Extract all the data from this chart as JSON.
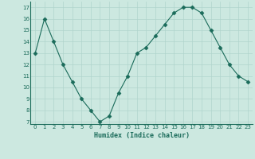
{
  "x": [
    0,
    1,
    2,
    3,
    4,
    5,
    6,
    7,
    8,
    9,
    10,
    11,
    12,
    13,
    14,
    15,
    16,
    17,
    18,
    19,
    20,
    21,
    22,
    23
  ],
  "y": [
    13,
    16,
    14,
    12,
    10.5,
    9,
    8,
    7,
    7.5,
    9.5,
    11,
    13,
    13.5,
    14.5,
    15.5,
    16.5,
    17,
    17,
    16.5,
    15,
    13.5,
    12,
    11,
    10.5
  ],
  "line_color": "#1a6b5a",
  "marker": "D",
  "marker_size": 2.5,
  "bg_color": "#cce8e0",
  "grid_color": "#b0d4cc",
  "title": "",
  "xlabel": "Humidex (Indice chaleur)",
  "xlim": [
    -0.5,
    23.5
  ],
  "ylim": [
    6.8,
    17.5
  ],
  "yticks": [
    7,
    8,
    9,
    10,
    11,
    12,
    13,
    14,
    15,
    16,
    17
  ],
  "xticks": [
    0,
    1,
    2,
    3,
    4,
    5,
    6,
    7,
    8,
    9,
    10,
    11,
    12,
    13,
    14,
    15,
    16,
    17,
    18,
    19,
    20,
    21,
    22,
    23
  ]
}
